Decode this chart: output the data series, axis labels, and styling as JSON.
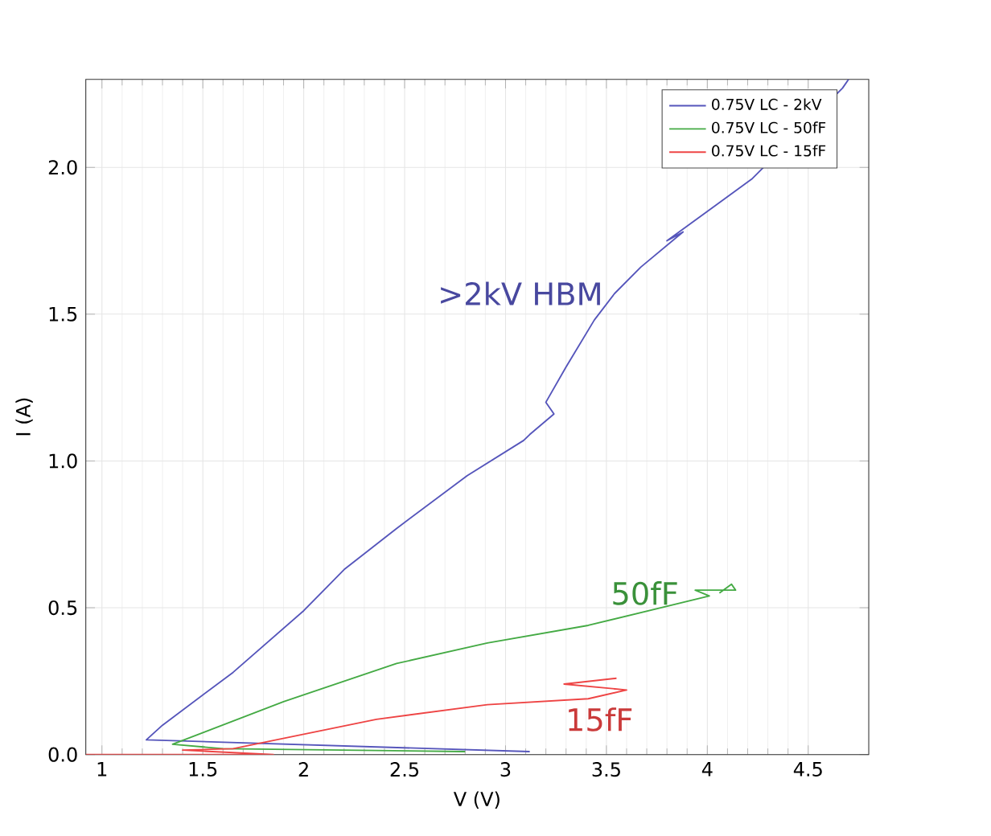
{
  "chart_data": {
    "type": "line",
    "xlabel": "V (V)",
    "ylabel": "I (A)",
    "xlim": [
      0.92,
      4.8
    ],
    "ylim": [
      0,
      2.3
    ],
    "xticks": [
      1,
      1.5,
      2,
      2.5,
      3,
      3.5,
      4,
      4.5
    ],
    "yticks": [
      {
        "value": 0,
        "label": "0.0"
      },
      {
        "value": 0.5,
        "label": "0.5"
      },
      {
        "value": 1,
        "label": "1.0"
      },
      {
        "value": 1.5,
        "label": "1.5"
      },
      {
        "value": 2,
        "label": "2.0"
      }
    ],
    "grid": true,
    "legend": "top right",
    "marker": "none",
    "line_style": "solid",
    "series": [
      {
        "name": "0.75V LC - 2kV",
        "color": "#5555bb",
        "x": [
          3.12,
          1.22,
          1.3,
          1.65,
          2.0,
          2.2,
          2.46,
          2.81,
          3.09,
          3.12,
          3.24,
          3.2,
          3.3,
          3.44,
          3.54,
          3.67,
          3.88,
          3.8,
          4.22,
          4.67,
          4.7
        ],
        "values": [
          0.01,
          0.05,
          0.1,
          0.28,
          0.49,
          0.63,
          0.77,
          0.95,
          1.07,
          1.09,
          1.16,
          1.2,
          1.32,
          1.48,
          1.57,
          1.66,
          1.78,
          1.75,
          1.96,
          2.27,
          2.3
        ]
      },
      {
        "name": "0.75V LC - 50fF",
        "color": "#44aa44",
        "x": [
          2.8,
          1.6,
          1.35,
          1.9,
          2.46,
          2.91,
          3.41,
          4.01,
          3.94,
          4.14,
          4.12,
          4.06
        ],
        "values": [
          0.01,
          0.02,
          0.035,
          0.18,
          0.31,
          0.38,
          0.44,
          0.54,
          0.56,
          0.56,
          0.58,
          0.55
        ]
      },
      {
        "name": "0.75V LC - 15fF",
        "color": "#ee4444",
        "x": [
          0.92,
          1.85,
          1.4,
          1.65,
          2.36,
          2.91,
          3.41,
          3.6,
          3.29,
          3.55
        ],
        "values": [
          0.0,
          0.0,
          0.015,
          0.02,
          0.12,
          0.17,
          0.19,
          0.22,
          0.24,
          0.26
        ]
      }
    ],
    "annotations": [
      ">2kV HBM",
      "50fF",
      "15fF"
    ]
  }
}
